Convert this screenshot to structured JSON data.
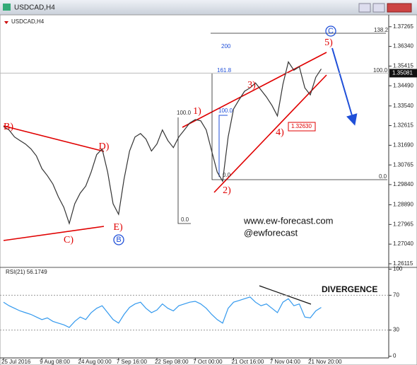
{
  "window_title": "USDCAD,H4",
  "chart_data": [
    {
      "type": "line",
      "title": "USDCAD,H4",
      "color": "#333333",
      "categories": [
        "25 Jul 2016",
        null,
        null,
        null,
        null,
        null,
        null,
        "9 Aug 08:00",
        null,
        null,
        null,
        null,
        null,
        null,
        "24 Aug 00:00",
        null,
        null,
        null,
        null,
        null,
        null,
        "7 Sep 16:00",
        null,
        null,
        null,
        null,
        null,
        null,
        "22 Sep 08:00",
        null,
        null,
        null,
        null,
        null,
        null,
        "7 Oct 00:00",
        null,
        null,
        null,
        null,
        null,
        null,
        "21 Oct 16:00",
        null,
        null,
        null,
        null,
        null,
        null,
        "7 Nov 04:00",
        null,
        null,
        null,
        null,
        null,
        null,
        "21 Nov 20:00",
        null,
        null
      ],
      "values": [
        1.3257,
        1.3241,
        1.3208,
        1.3191,
        1.3175,
        1.3152,
        1.3119,
        1.3059,
        1.3026,
        1.2987,
        1.2927,
        1.2877,
        1.2801,
        1.2894,
        1.2944,
        1.2977,
        1.3043,
        1.3125,
        1.3152,
        1.3043,
        1.2894,
        1.2844,
        1.301,
        1.3142,
        1.3208,
        1.3224,
        1.3198,
        1.3142,
        1.3175,
        1.3241,
        1.3191,
        1.3158,
        1.3208,
        1.3241,
        1.3274,
        1.329,
        1.3284,
        1.3241,
        1.3142,
        1.3043,
        1.3,
        1.3208,
        1.334,
        1.3383,
        1.3423,
        1.3439,
        1.3462,
        1.3429,
        1.3396,
        1.3356,
        1.3307,
        1.3456,
        1.3561,
        1.3522,
        1.3538,
        1.3439,
        1.3406,
        1.3489,
        1.3528
      ],
      "ylim": [
        1.2588,
        1.3779
      ],
      "yticks": [
        1.37265,
        {
          "value": 1.3634,
          "label": "1.36340"
        },
        {
          "value": 1.35415,
          "label": "1.35415"
        },
        {
          "value": 1.3449,
          "label": "1.34490"
        },
        {
          "value": 1.3354,
          "label": "1.33540"
        },
        1.32615,
        {
          "value": 1.3169,
          "label": "1.31690"
        },
        1.30765,
        {
          "value": 1.2984,
          "label": "1.29840"
        },
        {
          "value": 1.2889,
          "label": "1.28890"
        },
        1.27965,
        {
          "value": 1.2704,
          "label": "1.27040"
        },
        1.26115
      ],
      "last_price": 1.35081,
      "annotations": [
        {
          "text": "B)",
          "color": "#e00000"
        },
        {
          "text": "D)",
          "color": "#e00000"
        },
        {
          "text": "C)",
          "color": "#e00000"
        },
        {
          "text": "E)",
          "color": "#e00000"
        },
        {
          "text": "B",
          "color": "#1f4fd8"
        },
        {
          "text": "1)",
          "color": "#e00000"
        },
        {
          "text": "2)",
          "color": "#e00000"
        },
        {
          "text": "3)",
          "color": "#e00000"
        },
        {
          "text": "4)",
          "color": "#e00000"
        },
        {
          "text": "5)",
          "color": "#e00000"
        },
        {
          "text": "C",
          "color": "#1f4fd8"
        },
        {
          "text": "138.2",
          "color": "#333333"
        },
        {
          "text": "200",
          "color": "#1f4fd8"
        },
        {
          "text": "161.8",
          "color": "#1f4fd8"
        },
        {
          "text": "100.0",
          "color": "#333333"
        },
        {
          "text": "100.0",
          "color": "#333333"
        },
        {
          "text": "100.0",
          "color": "#1f4fd8"
        },
        {
          "text": "0.0",
          "color": "#333333"
        },
        {
          "text": "0.0",
          "color": "#333333"
        },
        {
          "text": "0.0",
          "color": "#333333"
        },
        {
          "text": "1.32630",
          "color": "#e00000"
        },
        {
          "text": "www.ew-forecast.com",
          "color": "#111111"
        },
        {
          "text": "@ewforecast",
          "color": "#111111"
        }
      ]
    },
    {
      "type": "line",
      "title": "RSI(21) 56.1749",
      "color": "#3399ee",
      "values": [
        62,
        58,
        55,
        52,
        50,
        48,
        45,
        42,
        44,
        40,
        38,
        36,
        33,
        40,
        45,
        42,
        50,
        55,
        58,
        50,
        42,
        38,
        48,
        56,
        60,
        62,
        55,
        50,
        53,
        60,
        55,
        52,
        58,
        60,
        62,
        63,
        60,
        55,
        48,
        42,
        38,
        55,
        62,
        64,
        66,
        68,
        62,
        58,
        60,
        55,
        50,
        62,
        66,
        58,
        60,
        45,
        44,
        52,
        56
      ],
      "ylim": [
        -2,
        102
      ],
      "yticks": [
        100,
        70,
        30,
        0
      ],
      "annotations": [
        {
          "text": "DIVERGENCE",
          "color": "#111111"
        }
      ]
    }
  ]
}
